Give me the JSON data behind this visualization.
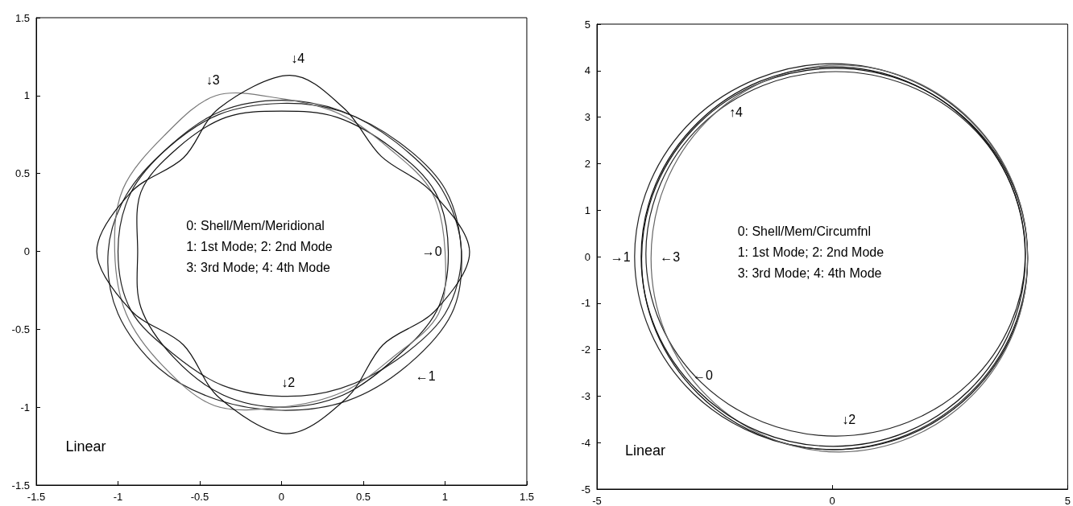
{
  "chart_data": [
    {
      "type": "line",
      "xlim": [
        -1.5,
        1.5
      ],
      "xticks": [
        -1.5,
        -1,
        -0.5,
        0,
        0.5,
        1,
        1.5
      ],
      "ylim": [
        -1.5,
        1.5
      ],
      "yticks": [
        -1.5,
        -1,
        -0.5,
        0,
        0.5,
        1,
        1.5
      ],
      "annotations": [
        "0: Shell/Mem/Meridional",
        "1: 1st Mode; 2: 2nd Mode",
        "3: 3rd Mode; 4: 4th Mode",
        "Linear",
        "↓4",
        "↓3",
        "→0",
        "←1",
        "↓2"
      ]
    },
    {
      "type": "line",
      "xlim": [
        -5,
        5
      ],
      "xticks": [
        -5,
        0,
        5
      ],
      "ylim": [
        -5,
        5
      ],
      "yticks": [
        -5,
        -4,
        -3,
        -2,
        -1,
        0,
        1,
        2,
        3,
        4,
        5
      ],
      "annotations": [
        "0: Shell/Mem/Circumfnl",
        "1: 1st Mode; 2: 2nd Mode",
        "3: 3rd Mode; 4: 4th Mode",
        "Linear",
        "→1",
        "←3",
        "↑4",
        "↓2",
        "←0"
      ]
    }
  ]
}
